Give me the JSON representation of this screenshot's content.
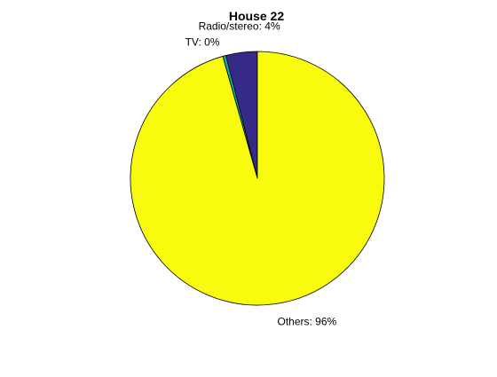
{
  "chart_data": {
    "type": "pie",
    "title": "House 22",
    "slices": [
      {
        "name": "Radio/stereo",
        "value": 4,
        "label": "Radio/stereo: 4%",
        "color": "#352A87"
      },
      {
        "name": "TV",
        "value": 0.4,
        "label": "TV: 0%",
        "color": "#13A9A1"
      },
      {
        "name": "Others",
        "value": 95.6,
        "label": "Others: 96%",
        "color": "#F9FB0E"
      }
    ],
    "start_angle_deg": 0,
    "direction": "counterclockwise",
    "edge_color": "#000000"
  }
}
